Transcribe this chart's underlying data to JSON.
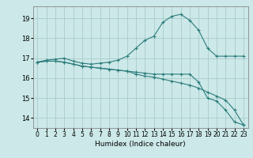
{
  "title": "",
  "xlabel": "Humidex (Indice chaleur)",
  "ylabel": "",
  "background_color": "#cce8e8",
  "grid_color": "#aacccc",
  "line_color": "#2d7d7d",
  "xlim": [
    -0.5,
    23.5
  ],
  "ylim": [
    13.5,
    19.6
  ],
  "xticks": [
    0,
    1,
    2,
    3,
    4,
    5,
    6,
    7,
    8,
    9,
    10,
    11,
    12,
    13,
    14,
    15,
    16,
    17,
    18,
    19,
    20,
    21,
    22,
    23
  ],
  "yticks": [
    14,
    15,
    16,
    17,
    18,
    19
  ],
  "line1_x": [
    0,
    1,
    2,
    3,
    4,
    5,
    6,
    7,
    8,
    9,
    10,
    11,
    12,
    13,
    14,
    15,
    16,
    17,
    18,
    19,
    20,
    21,
    22,
    23
  ],
  "line1_y": [
    16.8,
    16.9,
    16.95,
    17.0,
    16.85,
    16.75,
    16.7,
    16.75,
    16.8,
    16.9,
    17.1,
    17.5,
    17.9,
    18.1,
    18.8,
    19.1,
    19.2,
    18.9,
    18.4,
    17.5,
    17.1,
    17.1,
    17.1,
    17.1
  ],
  "line2_x": [
    0,
    1,
    2,
    3,
    4,
    5,
    6,
    7,
    8,
    9,
    10,
    11,
    12,
    13,
    14,
    15,
    16,
    17,
    18,
    19,
    20,
    21,
    22,
    23
  ],
  "line2_y": [
    16.8,
    16.85,
    16.85,
    16.8,
    16.7,
    16.6,
    16.55,
    16.5,
    16.45,
    16.4,
    16.35,
    16.3,
    16.25,
    16.2,
    16.2,
    16.2,
    16.2,
    16.2,
    15.8,
    15.0,
    14.85,
    14.4,
    13.8,
    13.65
  ],
  "line3_x": [
    0,
    1,
    2,
    3,
    4,
    5,
    6,
    7,
    8,
    9,
    10,
    11,
    12,
    13,
    14,
    15,
    16,
    17,
    18,
    19,
    20,
    21,
    22,
    23
  ],
  "line3_y": [
    16.8,
    16.85,
    16.85,
    16.8,
    16.7,
    16.6,
    16.55,
    16.5,
    16.45,
    16.4,
    16.35,
    16.2,
    16.1,
    16.05,
    15.95,
    15.85,
    15.75,
    15.65,
    15.5,
    15.3,
    15.1,
    14.9,
    14.4,
    13.65
  ]
}
